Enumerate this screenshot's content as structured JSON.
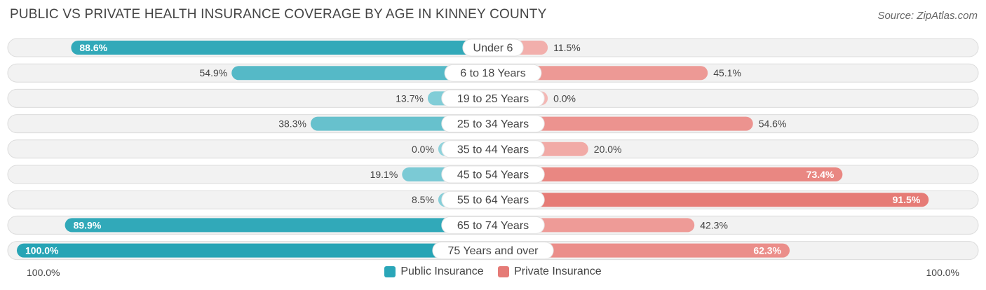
{
  "header": {
    "title": "PUBLIC VS PRIVATE HEALTH INSURANCE COVERAGE BY AGE IN KINNEY COUNTY",
    "source": "Source: ZipAtlas.com"
  },
  "axis": {
    "left_label": "100.0%",
    "right_label": "100.0%"
  },
  "legend": [
    {
      "label": "Public Insurance",
      "color": "#2aa6b8"
    },
    {
      "label": "Private Insurance",
      "color": "#e57b77"
    }
  ],
  "chart_data": {
    "type": "bar",
    "orientation": "horizontal-diverging",
    "categories": [
      "Under 6",
      "6 to 18 Years",
      "19 to 25 Years",
      "25 to 34 Years",
      "35 to 44 Years",
      "45 to 54 Years",
      "55 to 64 Years",
      "65 to 74 Years",
      "75 Years and over"
    ],
    "series": [
      {
        "name": "Public Insurance",
        "values": [
          88.6,
          54.9,
          13.7,
          38.3,
          0.0,
          19.1,
          8.5,
          89.9,
          100.0
        ],
        "labels": [
          "88.6%",
          "54.9%",
          "13.7%",
          "38.3%",
          "0.0%",
          "19.1%",
          "8.5%",
          "89.9%",
          "100.0%"
        ]
      },
      {
        "name": "Private Insurance",
        "values": [
          11.5,
          45.1,
          0.0,
          54.6,
          20.0,
          73.4,
          91.5,
          42.3,
          62.3
        ],
        "labels": [
          "11.5%",
          "45.1%",
          "0.0%",
          "54.6%",
          "20.0%",
          "73.4%",
          "91.5%",
          "42.3%",
          "62.3%"
        ]
      }
    ],
    "xlim": [
      -100,
      100
    ],
    "legend_position": "bottom-center"
  }
}
